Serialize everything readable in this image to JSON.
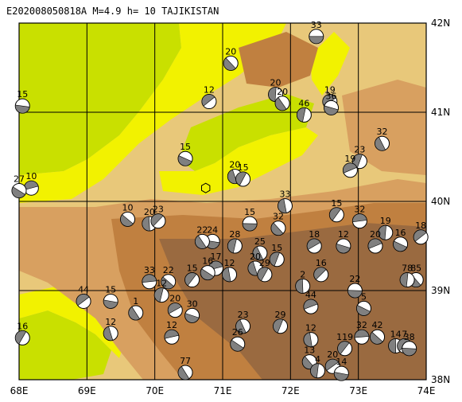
{
  "title": "E202008050818A  M=4.9  h=  10  TAJIKISTAN",
  "colors": {
    "lowland_green": "#c9e000",
    "plain_yellow": "#f2f200",
    "foothill": "#e8c87a",
    "mid": "#d8a060",
    "high": "#c08040",
    "peak": "#9a6a40",
    "grid": "#000000",
    "beach_dark": "#808080",
    "beach_light": "#ffffff"
  },
  "axes": {
    "lon_labels": [
      "68E",
      "69E",
      "70E",
      "71E",
      "72E",
      "73E",
      "74E"
    ],
    "lat_labels": [
      "38N",
      "39N",
      "40N",
      "41N",
      "42N"
    ]
  },
  "mechanisms": [
    {
      "mag": "33",
      "lon": 72.38,
      "lat": 41.85
    },
    {
      "mag": "20",
      "lon": 71.12,
      "lat": 41.55
    },
    {
      "mag": "20",
      "lon": 71.78,
      "lat": 41.2
    },
    {
      "mag": "12",
      "lon": 70.8,
      "lat": 41.12
    },
    {
      "mag": "15",
      "lon": 68.05,
      "lat": 41.07
    },
    {
      "mag": "20",
      "lon": 71.88,
      "lat": 41.1
    },
    {
      "mag": "46",
      "lon": 72.2,
      "lat": 40.97
    },
    {
      "mag": "19",
      "lon": 72.58,
      "lat": 41.12
    },
    {
      "mag": "36",
      "lon": 72.6,
      "lat": 41.05
    },
    {
      "mag": "32",
      "lon": 73.35,
      "lat": 40.65
    },
    {
      "mag": "23",
      "lon": 73.02,
      "lat": 40.45
    },
    {
      "mag": "19",
      "lon": 72.88,
      "lat": 40.35
    },
    {
      "mag": "15",
      "lon": 70.45,
      "lat": 40.48
    },
    {
      "mag": "20",
      "lon": 71.18,
      "lat": 40.28
    },
    {
      "mag": "15",
      "lon": 71.3,
      "lat": 40.25
    },
    {
      "mag": "10",
      "lon": 68.18,
      "lat": 40.15
    },
    {
      "mag": "27",
      "lon": 68.0,
      "lat": 40.12
    },
    {
      "mag": "33",
      "lon": 71.92,
      "lat": 39.95
    },
    {
      "mag": "15",
      "lon": 72.68,
      "lat": 39.85
    },
    {
      "mag": "32",
      "lon": 73.02,
      "lat": 39.78
    },
    {
      "mag": "10",
      "lon": 69.6,
      "lat": 39.8
    },
    {
      "mag": "20",
      "lon": 69.92,
      "lat": 39.75
    },
    {
      "mag": "23",
      "lon": 70.05,
      "lat": 39.78
    },
    {
      "mag": "15",
      "lon": 71.4,
      "lat": 39.75
    },
    {
      "mag": "32",
      "lon": 71.82,
      "lat": 39.7
    },
    {
      "mag": "19",
      "lon": 73.4,
      "lat": 39.65
    },
    {
      "mag": "18",
      "lon": 73.92,
      "lat": 39.6
    },
    {
      "mag": "24",
      "lon": 70.85,
      "lat": 39.55
    },
    {
      "mag": "22",
      "lon": 70.7,
      "lat": 39.55
    },
    {
      "mag": "28",
      "lon": 71.18,
      "lat": 39.5
    },
    {
      "mag": "18",
      "lon": 72.35,
      "lat": 39.5
    },
    {
      "mag": "12",
      "lon": 72.78,
      "lat": 39.5
    },
    {
      "mag": "25",
      "lon": 71.55,
      "lat": 39.42
    },
    {
      "mag": "15",
      "lon": 71.8,
      "lat": 39.35
    },
    {
      "mag": "20",
      "lon": 73.25,
      "lat": 39.5
    },
    {
      "mag": "16",
      "lon": 73.62,
      "lat": 39.52
    },
    {
      "mag": "20",
      "lon": 71.48,
      "lat": 39.25
    },
    {
      "mag": "29",
      "lon": 71.62,
      "lat": 39.18
    },
    {
      "mag": "17",
      "lon": 70.9,
      "lat": 39.25
    },
    {
      "mag": "16",
      "lon": 70.78,
      "lat": 39.2
    },
    {
      "mag": "12",
      "lon": 71.1,
      "lat": 39.18
    },
    {
      "mag": "15",
      "lon": 70.55,
      "lat": 39.12
    },
    {
      "mag": "33",
      "lon": 69.92,
      "lat": 39.1
    },
    {
      "mag": "22",
      "lon": 70.2,
      "lat": 39.1
    },
    {
      "mag": "2",
      "lon": 72.18,
      "lat": 39.05
    },
    {
      "mag": "16",
      "lon": 72.45,
      "lat": 39.18
    },
    {
      "mag": "22",
      "lon": 72.95,
      "lat": 39.0
    },
    {
      "mag": "85",
      "lon": 73.85,
      "lat": 39.12
    },
    {
      "mag": "78",
      "lon": 73.72,
      "lat": 39.12
    },
    {
      "mag": "44",
      "lon": 68.95,
      "lat": 38.88
    },
    {
      "mag": "15",
      "lon": 69.35,
      "lat": 38.88
    },
    {
      "mag": "1",
      "lon": 69.72,
      "lat": 38.75
    },
    {
      "mag": "12",
      "lon": 70.1,
      "lat": 38.95
    },
    {
      "mag": "20",
      "lon": 70.3,
      "lat": 38.78
    },
    {
      "mag": "30",
      "lon": 70.55,
      "lat": 38.72
    },
    {
      "mag": "23",
      "lon": 71.3,
      "lat": 38.6
    },
    {
      "mag": "29",
      "lon": 71.85,
      "lat": 38.6
    },
    {
      "mag": "44",
      "lon": 72.3,
      "lat": 38.82
    },
    {
      "mag": "5",
      "lon": 73.08,
      "lat": 38.8
    },
    {
      "mag": "12",
      "lon": 69.35,
      "lat": 38.52
    },
    {
      "mag": "16",
      "lon": 68.05,
      "lat": 38.47
    },
    {
      "mag": "12",
      "lon": 70.25,
      "lat": 38.48
    },
    {
      "mag": "26",
      "lon": 71.22,
      "lat": 38.4
    },
    {
      "mag": "12",
      "lon": 72.3,
      "lat": 38.45
    },
    {
      "mag": "119",
      "lon": 72.8,
      "lat": 38.35
    },
    {
      "mag": "32",
      "lon": 73.05,
      "lat": 38.48
    },
    {
      "mag": "42",
      "lon": 73.28,
      "lat": 38.48
    },
    {
      "mag": "14",
      "lon": 73.55,
      "lat": 38.38
    },
    {
      "mag": "7",
      "lon": 73.68,
      "lat": 38.38
    },
    {
      "mag": "38",
      "lon": 73.75,
      "lat": 38.35
    },
    {
      "mag": "13",
      "lon": 72.28,
      "lat": 38.2
    },
    {
      "mag": "4",
      "lon": 72.4,
      "lat": 38.1
    },
    {
      "mag": "20",
      "lon": 72.62,
      "lat": 38.15
    },
    {
      "mag": "14",
      "lon": 72.75,
      "lat": 38.07
    },
    {
      "mag": "77",
      "lon": 70.45,
      "lat": 38.08
    }
  ],
  "event_marker": {
    "lon": 70.75,
    "lat": 40.15
  }
}
